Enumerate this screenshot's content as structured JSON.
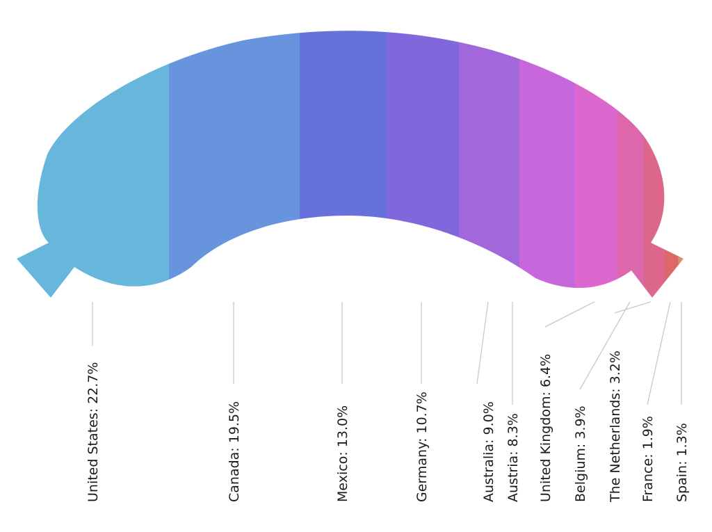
{
  "chart_data": {
    "type": "pie",
    "variant": "sausage-shaped percentage strip",
    "labels": [
      "United States",
      "Canada",
      "Mexico",
      "Germany",
      "Australia",
      "Austria",
      "United Kingdom",
      "Belgium",
      "The Netherlands",
      "France",
      "Spain"
    ],
    "values": [
      22.7,
      19.5,
      13.0,
      10.7,
      9.0,
      8.3,
      6.4,
      3.9,
      3.2,
      1.9,
      1.3
    ],
    "label_texts": [
      "United States: 22.7%",
      "Canada: 19.5%",
      "Mexico: 13.0%",
      "Germany: 10.7%",
      "Australia: 9.0%",
      "Austria: 8.3%",
      "United Kingdom: 6.4%",
      "Belgium: 3.9%",
      "The Netherlands: 3.2%",
      "France: 1.9%",
      "Spain: 1.3%"
    ],
    "colors": [
      "#67b7dc",
      "#6794dc",
      "#6771dc",
      "#8067dc",
      "#a367dc",
      "#c767dc",
      "#dc67ce",
      "#dc67ab",
      "#dc6788",
      "#dc6967",
      "#dc8c67"
    ],
    "legend": "none"
  }
}
